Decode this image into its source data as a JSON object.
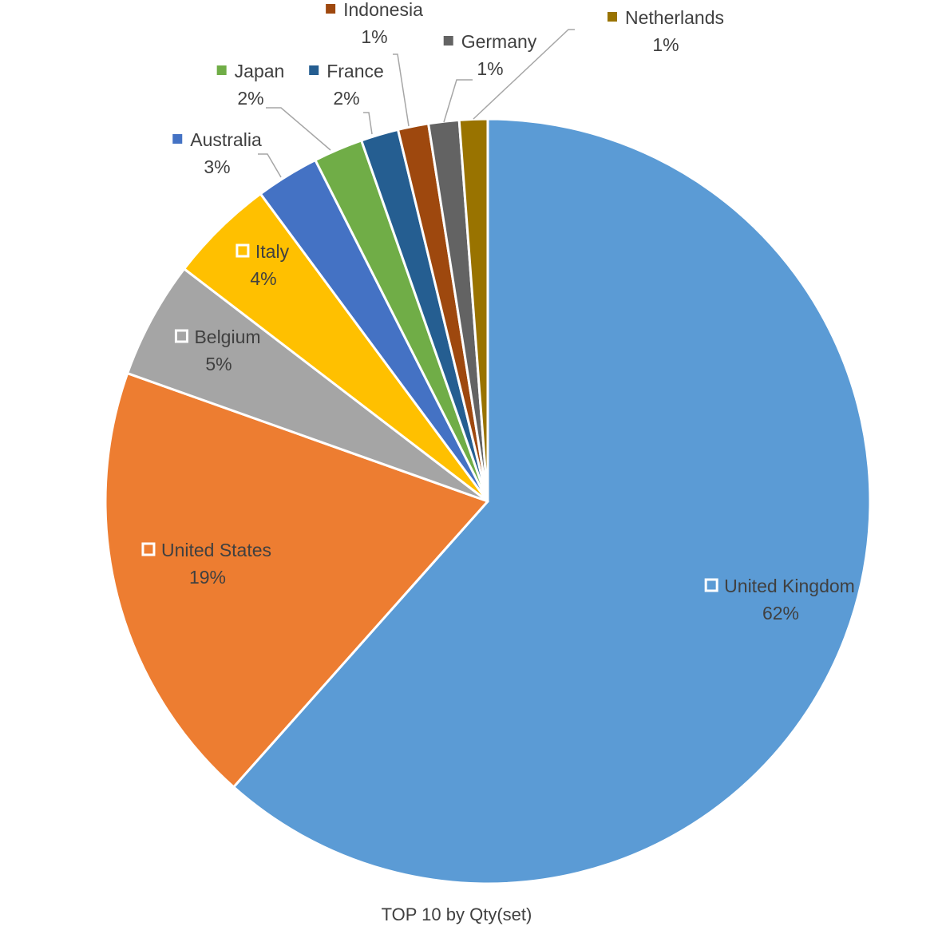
{
  "chart_data": {
    "type": "pie",
    "caption": "TOP 10 by Qty(set)",
    "slices": [
      {
        "label": "United Kingdom",
        "value": 62,
        "percent_label": "62%",
        "color": "#5b9bd5"
      },
      {
        "label": "United States",
        "value": 19,
        "percent_label": "19%",
        "color": "#ed7d31"
      },
      {
        "label": "Belgium",
        "value": 5,
        "percent_label": "5%",
        "color": "#a5a5a5"
      },
      {
        "label": "Italy",
        "value": 4.5,
        "percent_label": "4%",
        "color": "#ffc000"
      },
      {
        "label": "Australia",
        "value": 2.7,
        "percent_label": "3%",
        "color": "#4472c4"
      },
      {
        "label": "Japan",
        "value": 2.1,
        "percent_label": "2%",
        "color": "#70ad47"
      },
      {
        "label": "France",
        "value": 1.6,
        "percent_label": "2%",
        "color": "#255e91"
      },
      {
        "label": "Indonesia",
        "value": 1.3,
        "percent_label": "1%",
        "color": "#9e480e"
      },
      {
        "label": "Germany",
        "value": 1.3,
        "percent_label": "1%",
        "color": "#636363"
      },
      {
        "label": "Netherlands",
        "value": 1.2,
        "percent_label": "1%",
        "color": "#997300"
      }
    ]
  }
}
